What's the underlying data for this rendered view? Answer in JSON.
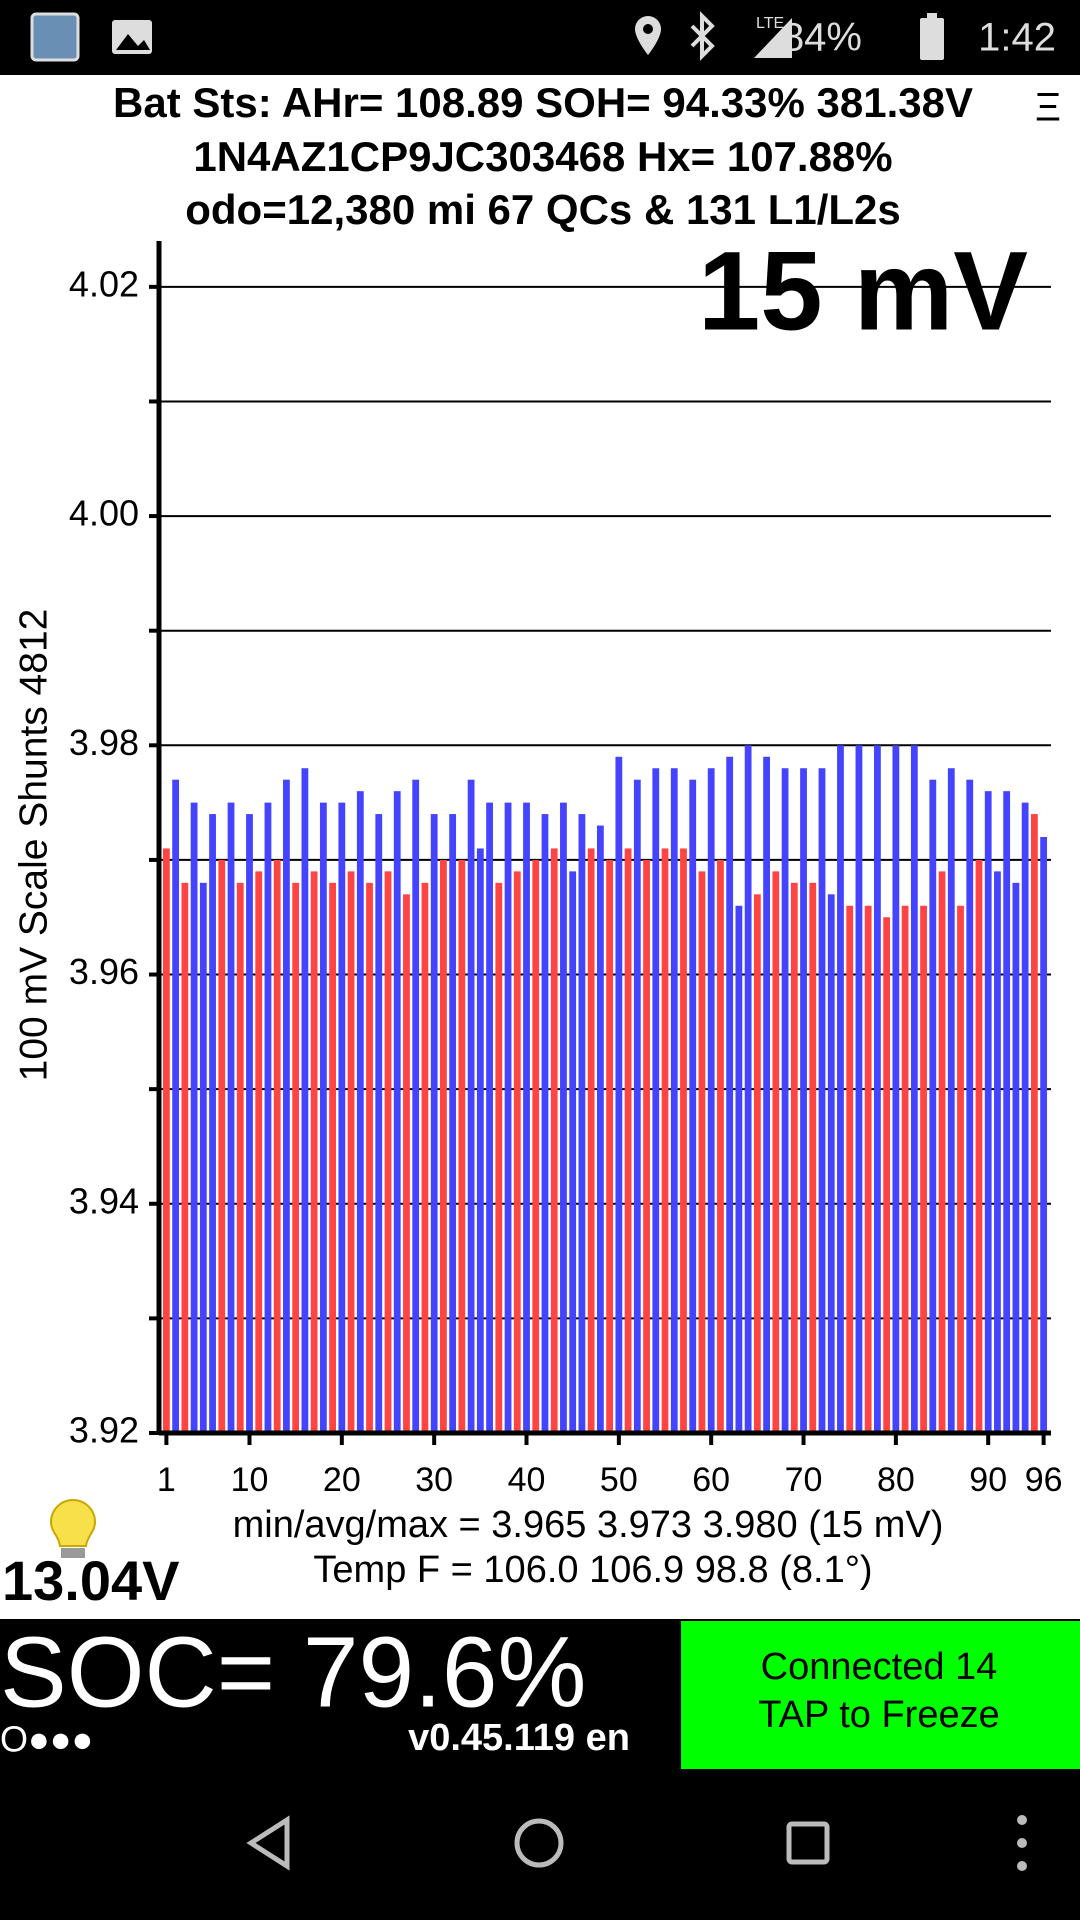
{
  "status_bar": {
    "network": "LTE",
    "battery": "84%",
    "time": "1:42"
  },
  "header": {
    "line1": "Bat Sts: AHr= 108.89 SOH= 94.33% 381.38V",
    "line2": "1N4AZ1CP9JC303468   Hx= 107.88%",
    "line3": "odo=12,380 mi 67 QCs & 131 L1/L2s",
    "menu": "Ξ"
  },
  "chart_data": {
    "type": "bar",
    "annotation": "15 mV",
    "y_label": "100 mV Scale   Shunts 4812",
    "x": [
      1,
      2,
      3,
      4,
      5,
      6,
      7,
      8,
      9,
      10,
      11,
      12,
      13,
      14,
      15,
      16,
      17,
      18,
      19,
      20,
      21,
      22,
      23,
      24,
      25,
      26,
      27,
      28,
      29,
      30,
      31,
      32,
      33,
      34,
      35,
      36,
      37,
      38,
      39,
      40,
      41,
      42,
      43,
      44,
      45,
      46,
      47,
      48,
      49,
      50,
      51,
      52,
      53,
      54,
      55,
      56,
      57,
      58,
      59,
      60,
      61,
      62,
      63,
      64,
      65,
      66,
      67,
      68,
      69,
      70,
      71,
      72,
      73,
      74,
      75,
      76,
      77,
      78,
      79,
      80,
      81,
      82,
      83,
      84,
      85,
      86,
      87,
      88,
      89,
      90,
      91,
      92,
      93,
      94,
      95,
      96
    ],
    "values": [
      3.971,
      3.977,
      3.968,
      3.975,
      3.968,
      3.974,
      3.97,
      3.975,
      3.968,
      3.974,
      3.969,
      3.975,
      3.97,
      3.977,
      3.968,
      3.978,
      3.969,
      3.975,
      3.968,
      3.975,
      3.969,
      3.976,
      3.968,
      3.974,
      3.969,
      3.976,
      3.967,
      3.977,
      3.968,
      3.974,
      3.97,
      3.974,
      3.97,
      3.977,
      3.971,
      3.975,
      3.968,
      3.975,
      3.969,
      3.975,
      3.97,
      3.974,
      3.971,
      3.975,
      3.969,
      3.974,
      3.971,
      3.973,
      3.97,
      3.979,
      3.971,
      3.977,
      3.97,
      3.978,
      3.971,
      3.978,
      3.971,
      3.977,
      3.969,
      3.978,
      3.97,
      3.979,
      3.966,
      3.98,
      3.967,
      3.979,
      3.969,
      3.978,
      3.968,
      3.978,
      3.968,
      3.978,
      3.967,
      3.98,
      3.966,
      3.98,
      3.966,
      3.98,
      3.965,
      3.98,
      3.966,
      3.98,
      3.966,
      3.977,
      3.969,
      3.978,
      3.966,
      3.977,
      3.97,
      3.976,
      3.969,
      3.976,
      3.968,
      3.975,
      3.974,
      3.972
    ],
    "bar_colors": [
      "#f44",
      "#44f",
      "#f44",
      "#44f",
      "#44f",
      "#44f",
      "#f44",
      "#44f",
      "#f44",
      "#44f",
      "#f44",
      "#44f",
      "#f44",
      "#44f",
      "#f44",
      "#44f",
      "#f44",
      "#44f",
      "#f44",
      "#44f",
      "#f44",
      "#44f",
      "#f44",
      "#44f",
      "#f44",
      "#44f",
      "#f44",
      "#44f",
      "#f44",
      "#44f",
      "#f44",
      "#44f",
      "#f44",
      "#44f",
      "#44f",
      "#44f",
      "#f44",
      "#44f",
      "#f44",
      "#44f",
      "#f44",
      "#44f",
      "#f44",
      "#44f",
      "#44f",
      "#44f",
      "#f44",
      "#44f",
      "#f44",
      "#44f",
      "#f44",
      "#44f",
      "#f44",
      "#44f",
      "#f44",
      "#44f",
      "#f44",
      "#44f",
      "#f44",
      "#44f",
      "#f44",
      "#44f",
      "#44f",
      "#44f",
      "#f44",
      "#44f",
      "#f44",
      "#44f",
      "#f44",
      "#44f",
      "#f44",
      "#44f",
      "#44f",
      "#44f",
      "#f44",
      "#44f",
      "#f44",
      "#44f",
      "#f44",
      "#44f",
      "#f44",
      "#44f",
      "#f44",
      "#44f",
      "#f44",
      "#44f",
      "#f44",
      "#44f",
      "#f44",
      "#44f",
      "#44f",
      "#44f",
      "#44f",
      "#44f",
      "#f44",
      "#44f"
    ],
    "xlim": [
      0.2,
      96.8
    ],
    "xticks": [
      1,
      10,
      20,
      30,
      40,
      50,
      60,
      70,
      80,
      90,
      96
    ],
    "ylim": [
      3.92,
      4.024
    ],
    "yticks": [
      {
        "value": 3.92,
        "label": "3.92"
      },
      {
        "value": 3.94,
        "label": "3.94"
      },
      {
        "value": 3.96,
        "label": "3.96"
      },
      {
        "value": 3.98,
        "label": "3.98"
      },
      {
        "value": 4.0,
        "label": "4.00"
      },
      {
        "value": 4.02,
        "label": "4.02"
      }
    ],
    "minor_yticks": [
      3.93,
      3.95,
      3.97,
      3.99,
      4.01
    ],
    "grid": true
  },
  "stats": {
    "minavgmax": "min/avg/max = 3.965 3.973 3.980  (15 mV)",
    "temp": "Temp F = 106.0  106.9  98.8  (8.1°)"
  },
  "footer": {
    "voltage": "13.04V",
    "soc": "SOC= 79.6%",
    "dots": "O●●●",
    "version": "v0.45.119 en",
    "button_line1": "Connected 14",
    "button_line2": "TAP to Freeze"
  }
}
